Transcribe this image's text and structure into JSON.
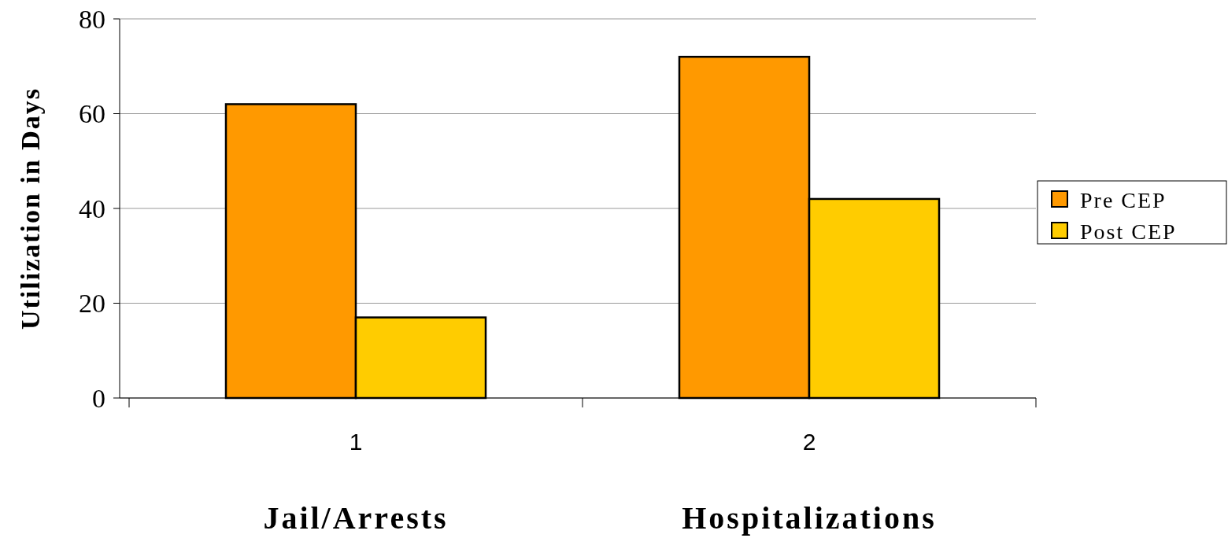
{
  "chart_data": {
    "type": "bar",
    "ylabel": "Utilization in Days",
    "categories": [
      "1",
      "2"
    ],
    "series": [
      {
        "name": "Pre CEP",
        "color": "#ff9900",
        "values": [
          62,
          72
        ]
      },
      {
        "name": "Post CEP",
        "color": "#ffcc00",
        "values": [
          17,
          42
        ]
      }
    ],
    "ylim": [
      0,
      80
    ],
    "yticks": [
      0,
      20,
      40,
      60,
      80
    ],
    "grid": "y",
    "legend": "right",
    "annotations": [
      "Jail/Arrests",
      "Hospitalizations"
    ]
  }
}
